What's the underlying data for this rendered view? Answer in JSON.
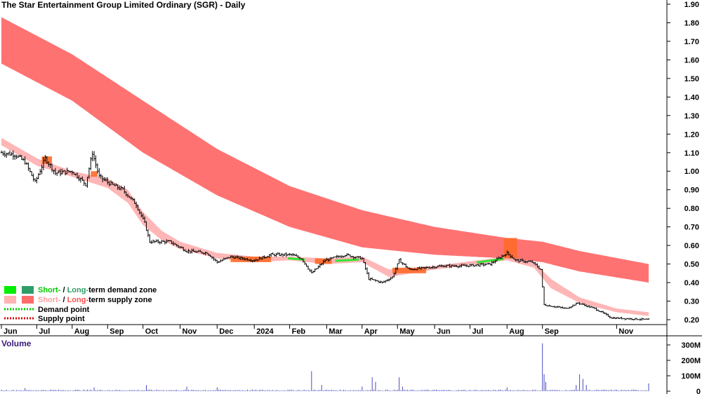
{
  "chart_data": {
    "type": "candlestick",
    "title": "The Star Entertainment Group Limited Ordinary (SGR) - Daily",
    "price_axis": {
      "ylim": [
        0.14,
        1.92
      ],
      "ticks": [
        0.2,
        0.3,
        0.4,
        0.5,
        0.6,
        0.7,
        0.8,
        0.9,
        1.0,
        1.1,
        1.2,
        1.3,
        1.4,
        1.5,
        1.6,
        1.7,
        1.8,
        1.9
      ]
    },
    "x_labels": [
      "Jun",
      "Jul",
      "Aug",
      "Sep",
      "Oct",
      "Nov",
      "Dec",
      "2024",
      "Feb",
      "Mar",
      "Apr",
      "May",
      "Jun",
      "Jul",
      "Aug",
      "Sep",
      "Nov"
    ],
    "x_label_index": [
      0,
      21,
      42,
      63,
      84,
      106,
      128,
      150,
      171,
      193,
      214,
      235,
      257,
      278,
      300,
      321,
      365
    ],
    "n_days": 385,
    "price_path": [
      {
        "i": 0,
        "v": 1.1
      },
      {
        "i": 8,
        "v": 1.09
      },
      {
        "i": 14,
        "v": 1.05
      },
      {
        "i": 20,
        "v": 0.94
      },
      {
        "i": 26,
        "v": 1.07
      },
      {
        "i": 32,
        "v": 0.99
      },
      {
        "i": 42,
        "v": 1.0
      },
      {
        "i": 50,
        "v": 0.93
      },
      {
        "i": 54,
        "v": 1.1
      },
      {
        "i": 58,
        "v": 0.97
      },
      {
        "i": 65,
        "v": 0.93
      },
      {
        "i": 72,
        "v": 0.9
      },
      {
        "i": 80,
        "v": 0.82
      },
      {
        "i": 85,
        "v": 0.72
      },
      {
        "i": 88,
        "v": 0.62
      },
      {
        "i": 100,
        "v": 0.62
      },
      {
        "i": 110,
        "v": 0.57
      },
      {
        "i": 122,
        "v": 0.56
      },
      {
        "i": 128,
        "v": 0.51
      },
      {
        "i": 136,
        "v": 0.54
      },
      {
        "i": 150,
        "v": 0.52
      },
      {
        "i": 160,
        "v": 0.55
      },
      {
        "i": 172,
        "v": 0.55
      },
      {
        "i": 178,
        "v": 0.53
      },
      {
        "i": 184,
        "v": 0.45
      },
      {
        "i": 192,
        "v": 0.52
      },
      {
        "i": 204,
        "v": 0.55
      },
      {
        "i": 214,
        "v": 0.53
      },
      {
        "i": 218,
        "v": 0.42
      },
      {
        "i": 226,
        "v": 0.4
      },
      {
        "i": 232,
        "v": 0.43
      },
      {
        "i": 236,
        "v": 0.52
      },
      {
        "i": 242,
        "v": 0.47
      },
      {
        "i": 252,
        "v": 0.48
      },
      {
        "i": 262,
        "v": 0.49
      },
      {
        "i": 275,
        "v": 0.49
      },
      {
        "i": 290,
        "v": 0.5
      },
      {
        "i": 300,
        "v": 0.56
      },
      {
        "i": 305,
        "v": 0.52
      },
      {
        "i": 315,
        "v": 0.51
      },
      {
        "i": 320,
        "v": 0.47
      },
      {
        "i": 322,
        "v": 0.28
      },
      {
        "i": 335,
        "v": 0.26
      },
      {
        "i": 342,
        "v": 0.29
      },
      {
        "i": 352,
        "v": 0.26
      },
      {
        "i": 362,
        "v": 0.21
      },
      {
        "i": 384,
        "v": 0.2
      }
    ],
    "long_term_supply_zone": [
      {
        "i": 0,
        "upper": 1.83,
        "lower": 1.58
      },
      {
        "i": 42,
        "upper": 1.63,
        "lower": 1.38
      },
      {
        "i": 84,
        "upper": 1.38,
        "lower": 1.1
      },
      {
        "i": 128,
        "upper": 1.12,
        "lower": 0.87
      },
      {
        "i": 171,
        "upper": 0.92,
        "lower": 0.7
      },
      {
        "i": 214,
        "upper": 0.79,
        "lower": 0.59
      },
      {
        "i": 257,
        "upper": 0.7,
        "lower": 0.55
      },
      {
        "i": 300,
        "upper": 0.64,
        "lower": 0.53
      },
      {
        "i": 321,
        "upper": 0.62,
        "lower": 0.51
      },
      {
        "i": 343,
        "upper": 0.57,
        "lower": 0.46
      },
      {
        "i": 384,
        "upper": 0.5,
        "lower": 0.4
      }
    ],
    "short_term_zone": [
      {
        "i": 0,
        "upper": 1.18,
        "lower": 1.14
      },
      {
        "i": 21,
        "upper": 1.07,
        "lower": 1.03
      },
      {
        "i": 42,
        "upper": 1.0,
        "lower": 0.97
      },
      {
        "i": 63,
        "upper": 0.96,
        "lower": 0.91
      },
      {
        "i": 75,
        "upper": 0.9,
        "lower": 0.83
      },
      {
        "i": 84,
        "upper": 0.78,
        "lower": 0.71
      },
      {
        "i": 95,
        "upper": 0.68,
        "lower": 0.63
      },
      {
        "i": 106,
        "upper": 0.62,
        "lower": 0.58
      },
      {
        "i": 128,
        "upper": 0.56,
        "lower": 0.53
      },
      {
        "i": 150,
        "upper": 0.54,
        "lower": 0.51
      },
      {
        "i": 171,
        "upper": 0.54,
        "lower": 0.52
      },
      {
        "i": 193,
        "upper": 0.53,
        "lower": 0.5
      },
      {
        "i": 214,
        "upper": 0.54,
        "lower": 0.51
      },
      {
        "i": 230,
        "upper": 0.47,
        "lower": 0.43
      },
      {
        "i": 257,
        "upper": 0.49,
        "lower": 0.47
      },
      {
        "i": 300,
        "upper": 0.54,
        "lower": 0.52
      },
      {
        "i": 316,
        "upper": 0.51,
        "lower": 0.48
      },
      {
        "i": 326,
        "upper": 0.42,
        "lower": 0.37
      },
      {
        "i": 343,
        "upper": 0.32,
        "lower": 0.29
      },
      {
        "i": 365,
        "upper": 0.26,
        "lower": 0.24
      },
      {
        "i": 384,
        "upper": 0.24,
        "lower": 0.22
      }
    ],
    "short_term_demand_segments": [
      [
        170,
        180
      ],
      [
        198,
        212
      ],
      [
        282,
        298
      ]
    ],
    "supply_highlights": [
      {
        "i0": 24,
        "i1": 30,
        "upper": 1.08,
        "lower": 1.04
      },
      {
        "i0": 53,
        "i1": 57,
        "upper": 1.0,
        "lower": 0.97
      },
      {
        "i0": 136,
        "i1": 160,
        "upper": 0.54,
        "lower": 0.51
      },
      {
        "i0": 186,
        "i1": 196,
        "upper": 0.53,
        "lower": 0.5
      },
      {
        "i0": 232,
        "i1": 252,
        "upper": 0.48,
        "lower": 0.45
      },
      {
        "i0": 298,
        "i1": 306,
        "upper": 0.64,
        "lower": 0.53
      }
    ],
    "volume": {
      "title": "Volume",
      "ticks": [
        {
          "v": 300,
          "label": "300M"
        },
        {
          "v": 200,
          "label": "200M"
        },
        {
          "v": 100,
          "label": "100M"
        },
        {
          "v": 0,
          "label": "0"
        }
      ],
      "ylim": [
        0,
        320
      ],
      "base": 6,
      "spikes": [
        {
          "i": 14,
          "v": 20
        },
        {
          "i": 55,
          "v": 25
        },
        {
          "i": 86,
          "v": 40
        },
        {
          "i": 110,
          "v": 30
        },
        {
          "i": 128,
          "v": 25
        },
        {
          "i": 184,
          "v": 130
        },
        {
          "i": 190,
          "v": 40
        },
        {
          "i": 214,
          "v": 30
        },
        {
          "i": 220,
          "v": 90
        },
        {
          "i": 222,
          "v": 60
        },
        {
          "i": 236,
          "v": 90
        },
        {
          "i": 238,
          "v": 30
        },
        {
          "i": 300,
          "v": 25
        },
        {
          "i": 321,
          "v": 310
        },
        {
          "i": 322,
          "v": 110
        },
        {
          "i": 323,
          "v": 60
        },
        {
          "i": 341,
          "v": 40
        },
        {
          "i": 343,
          "v": 110
        },
        {
          "i": 345,
          "v": 80
        },
        {
          "i": 347,
          "v": 40
        },
        {
          "i": 384,
          "v": 50
        }
      ]
    },
    "legend": [
      {
        "label_a": "Short-",
        "sep": " / ",
        "label_b": "Long-",
        "rest": "term demand zone",
        "swatch_a": "#00ee00",
        "swatch_b": "#2e9e66",
        "color_a": "#00cc00",
        "color_b": "#2e9e66"
      },
      {
        "label_a": "Short-",
        "sep": " / ",
        "label_b": "Long-",
        "rest": "term supply zone",
        "swatch_a": "#ffb3b3",
        "swatch_b": "#ff6b6b",
        "color_a": "#ffa0a0",
        "color_b": "#ff5050"
      },
      {
        "label": "Demand point",
        "line_color": "#00cc00"
      },
      {
        "label": "Supply point",
        "line_color": "#dd0000"
      }
    ],
    "colors": {
      "long_supply": "#ff7272",
      "short_supply": "#ffb6b6",
      "short_demand": "#33e633",
      "supply_highlight": "#ff6a2a",
      "candle": "#000000",
      "volume_bar": "#4b4bbf"
    }
  }
}
